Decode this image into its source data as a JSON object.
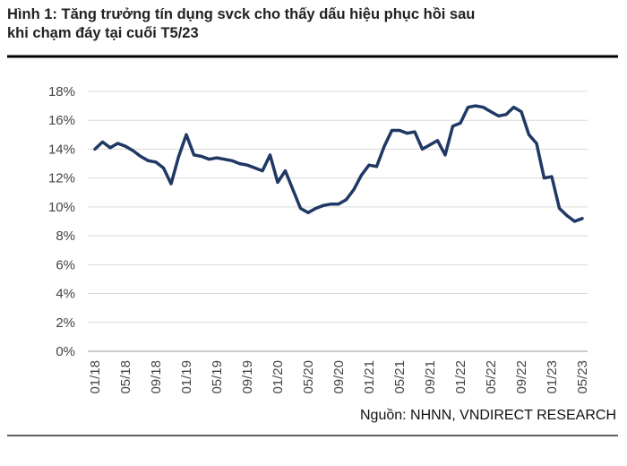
{
  "chart_data": {
    "type": "line",
    "title": [
      "Hình 1: Tăng trưởng tín dụng svck cho thấy dấu hiệu phục hồi sau",
      "khi chạm đáy tại cuối T5/23"
    ],
    "source": "Nguồn: NHNN, VNDIRECT RESEARCH",
    "categories": [
      "01/18",
      null,
      null,
      null,
      "05/18",
      null,
      null,
      null,
      "09/18",
      null,
      null,
      null,
      "01/19",
      null,
      null,
      null,
      "05/19",
      null,
      null,
      null,
      "09/19",
      null,
      null,
      null,
      "01/20",
      null,
      null,
      null,
      "05/20",
      null,
      null,
      null,
      "09/20",
      null,
      null,
      null,
      "01/21",
      null,
      null,
      null,
      "05/21",
      null,
      null,
      null,
      "09/21",
      null,
      null,
      null,
      "01/22",
      null,
      null,
      null,
      "05/22",
      null,
      null,
      null,
      "09/22",
      null,
      null,
      null,
      "01/23",
      null,
      null,
      null,
      "05/23"
    ],
    "series": [
      {
        "color": "#1f3864",
        "values": [
          14.0,
          14.5,
          14.1,
          14.4,
          14.2,
          13.9,
          13.5,
          13.2,
          13.1,
          12.7,
          11.6,
          13.5,
          15.0,
          13.6,
          13.5,
          13.3,
          13.4,
          13.3,
          13.2,
          13.0,
          12.9,
          12.7,
          12.5,
          13.6,
          11.7,
          12.5,
          11.2,
          9.9,
          9.6,
          9.9,
          10.1,
          10.2,
          10.2,
          10.5,
          11.2,
          12.2,
          12.9,
          12.8,
          14.2,
          15.3,
          15.3,
          15.1,
          15.2,
          14.0,
          14.3,
          14.6,
          13.6,
          15.6,
          15.8,
          16.9,
          17.0,
          16.9,
          16.6,
          16.3,
          16.4,
          16.9,
          16.6,
          15.0,
          14.4,
          12.0,
          12.1,
          9.9,
          9.4,
          9.0,
          9.2
        ]
      }
    ],
    "ylim": [
      0,
      18
    ],
    "yticks": [
      {
        "value": 0,
        "label": "0%"
      },
      {
        "value": 2,
        "label": "2%"
      },
      {
        "value": 4,
        "label": "4%"
      },
      {
        "value": 6,
        "label": "6%"
      },
      {
        "value": 8,
        "label": "8%"
      },
      {
        "value": 10,
        "label": "10%"
      },
      {
        "value": 12,
        "label": "12%"
      },
      {
        "value": 14,
        "label": "14%"
      },
      {
        "value": 16,
        "label": "16%"
      },
      {
        "value": 18,
        "label": "18%"
      }
    ],
    "grid": true
  }
}
